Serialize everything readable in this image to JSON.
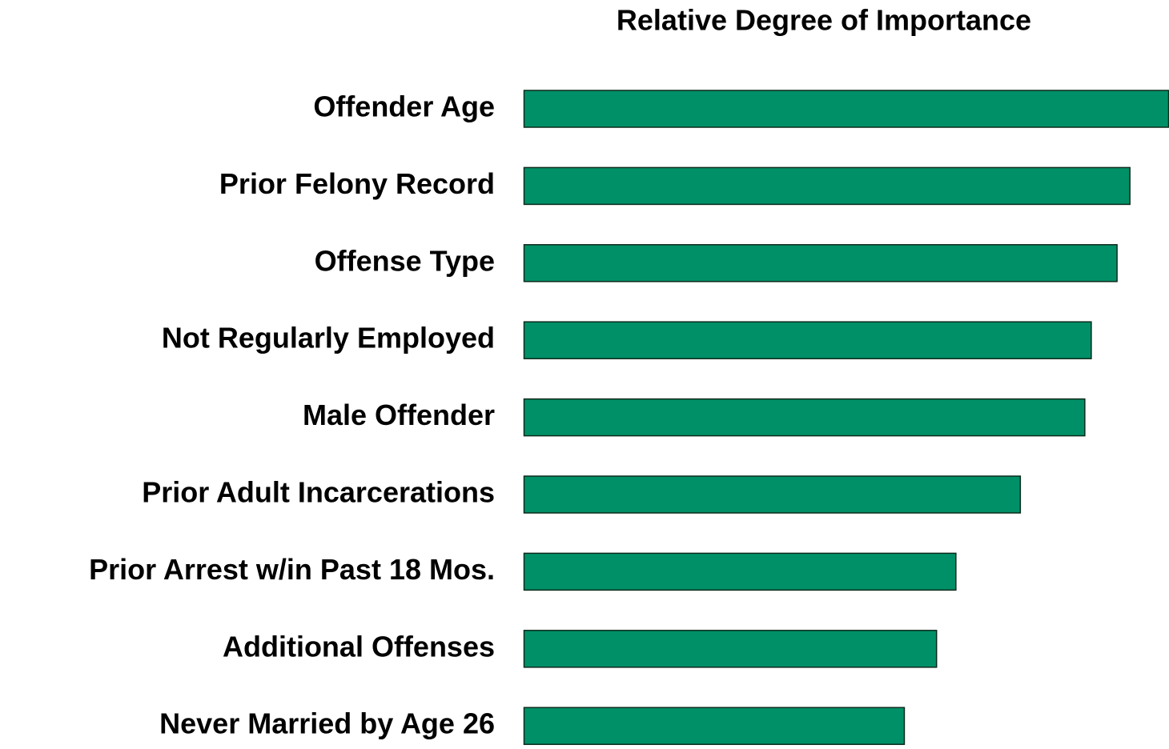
{
  "chart_data": {
    "type": "hbar",
    "title": "Relative Degree of Importance",
    "categories": [
      "Offender Age",
      "Prior Felony Record",
      "Offense Type",
      "Not Regularly Employed",
      "Male Offender",
      "Prior Adult Incarcerations",
      "Prior Arrest w/in Past 18 Mos.",
      "Additional Offenses",
      "Never Married by Age 26"
    ],
    "values": [
      100,
      94,
      92,
      88,
      87,
      77,
      67,
      64,
      59
    ],
    "color": "#009068"
  }
}
